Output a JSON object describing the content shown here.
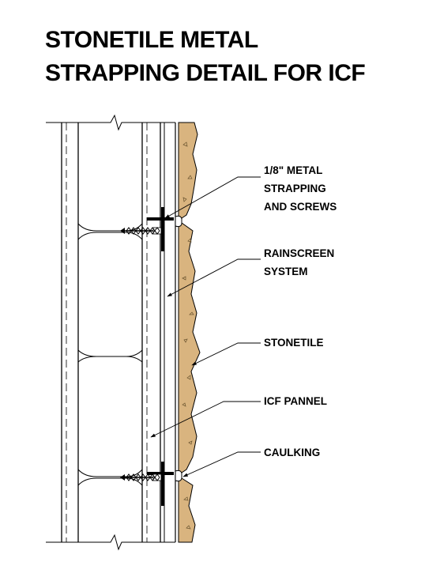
{
  "title_lines": [
    "STONETILE METAL",
    "STRAPPING DETAIL FOR ICF"
  ],
  "callouts": [
    {
      "lines": [
        "1/8\" METAL",
        "STRAPPING",
        "AND SCREWS"
      ]
    },
    {
      "lines": [
        "RAINSCREEN",
        "SYSTEM"
      ]
    },
    {
      "lines": [
        "STONETILE"
      ]
    },
    {
      "lines": [
        "ICF PANNEL"
      ]
    },
    {
      "lines": [
        "CAULKING"
      ]
    }
  ],
  "colors": {
    "stone": "#d9b47f",
    "line": "#000000"
  }
}
